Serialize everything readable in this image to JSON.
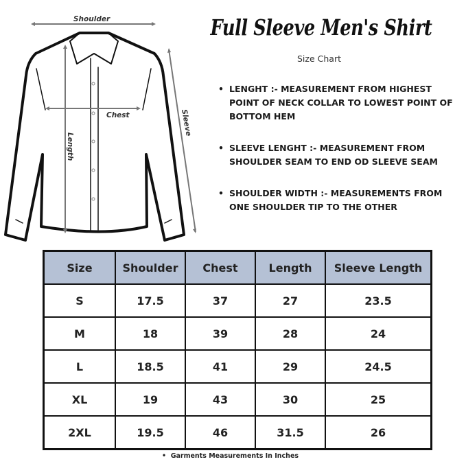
{
  "title": "Full Sleeve Men's Shirt",
  "subtitle": "Size Chart",
  "diagram_labels": {
    "shoulder": "Shoulder",
    "chest": "Chest",
    "length": "Length",
    "sleeve": "Sleeve"
  },
  "notes": [
    "LENGHT :- MEASUREMENT FROM HIGHEST POINT OF NECK COLLAR TO LOWEST POINT OF BOTTOM HEM",
    "SLEEVE LENGHT :- MEASUREMENT FROM SHOULDER SEAM TO END OD SLEEVE SEAM",
    "SHOULDER WIDTH :- MEASUREMENTS FROM ONE SHOULDER TIP TO THE OTHER"
  ],
  "table": {
    "headers": [
      "Size",
      "Shoulder",
      "Chest",
      "Length",
      "Sleeve Length"
    ],
    "rows": [
      [
        "S",
        "17.5",
        "37",
        "27",
        "23.5"
      ],
      [
        "M",
        "18",
        "39",
        "28",
        "24"
      ],
      [
        "L",
        "18.5",
        "41",
        "29",
        "24.5"
      ],
      [
        "XL",
        "19",
        "43",
        "30",
        "25"
      ],
      [
        "2XL",
        "19.5",
        "46",
        "31.5",
        "26"
      ]
    ],
    "header_color": "#b5c1d5"
  },
  "footnote": "Garments Measurements In Inches"
}
